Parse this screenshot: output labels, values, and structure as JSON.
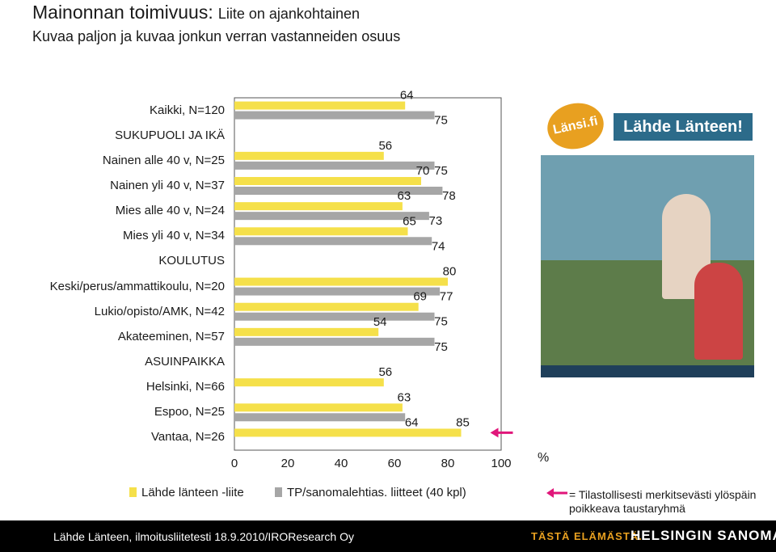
{
  "header": {
    "title_main": "Mainonnan toimivuus:",
    "title_sub": "Liite on ajankohtainen",
    "subtitle": "Kuvaa paljon ja kuvaa jonkun verran vastanneiden osuus"
  },
  "chart_data": {
    "type": "bar",
    "orientation": "horizontal",
    "categories": [
      "Kaikki, N=120",
      "SUKUPUOLI JA IKÄ",
      "Nainen alle 40 v, N=25",
      "Nainen yli 40 v, N=37",
      "Mies alle 40 v, N=24",
      "Mies yli 40 v, N=34",
      "KOULUTUS",
      "Keski/perus/ammattikoulu, N=20",
      "Lukio/opisto/AMK, N=42",
      "Akateeminen, N=57",
      "ASUINPAIKKA",
      "Helsinki, N=66",
      "Espoo, N=25",
      "Vantaa, N=26"
    ],
    "series": [
      {
        "name": "Lähde länteen -liite",
        "color": "#f5e04a",
        "values": [
          64,
          null,
          56,
          70,
          63,
          65,
          null,
          80,
          69,
          54,
          null,
          56,
          63,
          85
        ]
      },
      {
        "name": "TP/sanomalehtias. liitteet (40 kpl)",
        "color": "#a6a6a6",
        "values": [
          75,
          null,
          75,
          78,
          73,
          74,
          null,
          77,
          75,
          75,
          null,
          null,
          64,
          null
        ]
      }
    ],
    "significant": [
      13
    ],
    "xticks": [
      "0",
      "20",
      "40",
      "60",
      "80",
      "100"
    ],
    "xlim": [
      0,
      100
    ],
    "unit": "%",
    "grid": false
  },
  "legend": {
    "series1": "Lähde länteen -liite",
    "series2": "TP/sanomalehtias. liitteet (40 kpl)",
    "arrow_note_line1": "= Tilastollisesti merkitsevästi ylöspäin",
    "arrow_note_line2": "poikkeava taustaryhmä",
    "arrow_color": "#e0167a"
  },
  "magazine": {
    "logo": "Länsi.fi",
    "title": "Lähde Länteen!"
  },
  "footer": {
    "source": "Lähde Länteen, ilmoitusliitetesti 18.9.2010/IROResearch Oy",
    "slogan": "TÄSTÄ ELÄMÄSTÄ.",
    "brand": "HELSINGIN SANOMAT"
  }
}
